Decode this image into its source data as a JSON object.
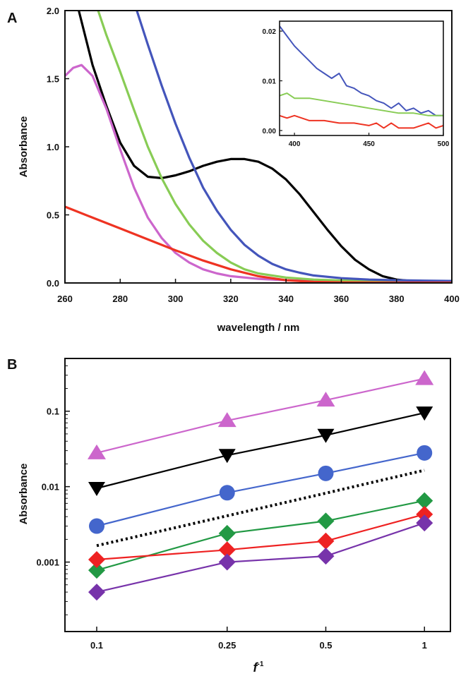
{
  "chart_data": [
    {
      "panel": "A",
      "type": "line",
      "xlabel": "wavelength / nm",
      "ylabel": "Absorbance",
      "xlim": [
        260,
        400
      ],
      "ylim": [
        0,
        2.0
      ],
      "xticks": [
        260,
        280,
        300,
        320,
        340,
        360,
        380,
        400
      ],
      "yticks": [
        0.0,
        0.5,
        1.0,
        1.5,
        2.0
      ],
      "ytick_labels": [
        "0.0",
        "0.5",
        "1.0",
        "1.5",
        "2.0"
      ],
      "series": [
        {
          "color": "#000000",
          "points": [
            [
              260,
              2.3
            ],
            [
              265,
              2.0
            ],
            [
              270,
              1.6
            ],
            [
              275,
              1.3
            ],
            [
              280,
              1.03
            ],
            [
              285,
              0.86
            ],
            [
              290,
              0.78
            ],
            [
              295,
              0.77
            ],
            [
              300,
              0.79
            ],
            [
              305,
              0.82
            ],
            [
              310,
              0.86
            ],
            [
              315,
              0.89
            ],
            [
              320,
              0.91
            ],
            [
              325,
              0.91
            ],
            [
              330,
              0.89
            ],
            [
              335,
              0.84
            ],
            [
              340,
              0.76
            ],
            [
              345,
              0.65
            ],
            [
              350,
              0.52
            ],
            [
              355,
              0.39
            ],
            [
              360,
              0.27
            ],
            [
              365,
              0.17
            ],
            [
              370,
              0.1
            ],
            [
              375,
              0.05
            ],
            [
              380,
              0.025
            ],
            [
              385,
              0.015
            ],
            [
              390,
              0.01
            ],
            [
              400,
              0.01
            ]
          ]
        },
        {
          "color": "#cc66cc",
          "points": [
            [
              260,
              1.52
            ],
            [
              263,
              1.58
            ],
            [
              266,
              1.6
            ],
            [
              270,
              1.52
            ],
            [
              275,
              1.28
            ],
            [
              280,
              0.98
            ],
            [
              285,
              0.7
            ],
            [
              290,
              0.48
            ],
            [
              295,
              0.33
            ],
            [
              300,
              0.22
            ],
            [
              305,
              0.15
            ],
            [
              310,
              0.1
            ],
            [
              315,
              0.07
            ],
            [
              320,
              0.05
            ],
            [
              330,
              0.03
            ],
            [
              340,
              0.02
            ],
            [
              350,
              0.015
            ],
            [
              360,
              0.012
            ],
            [
              380,
              0.01
            ],
            [
              400,
              0.01
            ]
          ]
        },
        {
          "color": "#88cc55",
          "points": [
            [
              272,
              2.0
            ],
            [
              275,
              1.82
            ],
            [
              280,
              1.55
            ],
            [
              285,
              1.27
            ],
            [
              290,
              1.0
            ],
            [
              295,
              0.77
            ],
            [
              300,
              0.58
            ],
            [
              305,
              0.43
            ],
            [
              310,
              0.31
            ],
            [
              315,
              0.22
            ],
            [
              320,
              0.15
            ],
            [
              325,
              0.1
            ],
            [
              330,
              0.07
            ],
            [
              340,
              0.04
            ],
            [
              350,
              0.025
            ],
            [
              360,
              0.018
            ],
            [
              380,
              0.012
            ],
            [
              400,
              0.01
            ]
          ]
        },
        {
          "color": "#4455bb",
          "points": [
            [
              286,
              2.0
            ],
            [
              290,
              1.75
            ],
            [
              295,
              1.45
            ],
            [
              300,
              1.17
            ],
            [
              305,
              0.92
            ],
            [
              310,
              0.7
            ],
            [
              315,
              0.53
            ],
            [
              320,
              0.39
            ],
            [
              325,
              0.28
            ],
            [
              330,
              0.2
            ],
            [
              335,
              0.14
            ],
            [
              340,
              0.1
            ],
            [
              345,
              0.075
            ],
            [
              350,
              0.055
            ],
            [
              360,
              0.035
            ],
            [
              370,
              0.025
            ],
            [
              380,
              0.02
            ],
            [
              390,
              0.017
            ],
            [
              400,
              0.015
            ]
          ]
        },
        {
          "color": "#ee3322",
          "points": [
            [
              260,
              0.56
            ],
            [
              270,
              0.48
            ],
            [
              280,
              0.4
            ],
            [
              290,
              0.32
            ],
            [
              300,
              0.24
            ],
            [
              310,
              0.165
            ],
            [
              320,
              0.1
            ],
            [
              330,
              0.05
            ],
            [
              340,
              0.02
            ],
            [
              350,
              0.008
            ],
            [
              360,
              0.004
            ],
            [
              380,
              0.002
            ],
            [
              400,
              0.002
            ]
          ]
        }
      ],
      "inset": {
        "type": "line",
        "xlim": [
          390,
          500
        ],
        "ylim": [
          -0.001,
          0.022
        ],
        "xticks": [
          400,
          450,
          500
        ],
        "yticks": [
          0.0,
          0.01,
          0.02
        ],
        "ytick_labels": [
          "0.00",
          "0.01",
          "0.02"
        ],
        "series": [
          {
            "color": "#4455bb",
            "points": [
              [
                390,
                0.021
              ],
              [
                395,
                0.019
              ],
              [
                400,
                0.017
              ],
              [
                405,
                0.0155
              ],
              [
                410,
                0.014
              ],
              [
                415,
                0.0125
              ],
              [
                420,
                0.0115
              ],
              [
                425,
                0.0105
              ],
              [
                430,
                0.0115
              ],
              [
                435,
                0.009
              ],
              [
                440,
                0.0085
              ],
              [
                445,
                0.0075
              ],
              [
                450,
                0.007
              ],
              [
                455,
                0.006
              ],
              [
                460,
                0.0055
              ],
              [
                465,
                0.0045
              ],
              [
                470,
                0.0055
              ],
              [
                475,
                0.004
              ],
              [
                480,
                0.0045
              ],
              [
                485,
                0.0035
              ],
              [
                490,
                0.004
              ],
              [
                495,
                0.003
              ],
              [
                500,
                0.003
              ]
            ]
          },
          {
            "color": "#88cc55",
            "points": [
              [
                390,
                0.007
              ],
              [
                395,
                0.0075
              ],
              [
                400,
                0.0065
              ],
              [
                410,
                0.0065
              ],
              [
                420,
                0.006
              ],
              [
                430,
                0.0055
              ],
              [
                440,
                0.005
              ],
              [
                450,
                0.0045
              ],
              [
                460,
                0.004
              ],
              [
                470,
                0.0035
              ],
              [
                480,
                0.0035
              ],
              [
                490,
                0.003
              ],
              [
                500,
                0.003
              ]
            ]
          },
          {
            "color": "#ee3322",
            "points": [
              [
                390,
                0.003
              ],
              [
                395,
                0.0025
              ],
              [
                400,
                0.003
              ],
              [
                410,
                0.002
              ],
              [
                420,
                0.002
              ],
              [
                430,
                0.0015
              ],
              [
                440,
                0.0015
              ],
              [
                450,
                0.001
              ],
              [
                455,
                0.0015
              ],
              [
                460,
                0.0005
              ],
              [
                465,
                0.0015
              ],
              [
                470,
                0.0005
              ],
              [
                480,
                0.0005
              ],
              [
                490,
                0.0015
              ],
              [
                495,
                0.0005
              ],
              [
                500,
                0.001
              ]
            ]
          }
        ]
      }
    },
    {
      "panel": "B",
      "type": "line",
      "xlabel": "f",
      "xlabel_sup": "-1",
      "ylabel": "Absorbance",
      "xscale": "log",
      "yscale": "log",
      "xlim": [
        0.08,
        1.2
      ],
      "ylim": [
        0.00012,
        0.5
      ],
      "xticks": [
        0.1,
        0.25,
        0.5,
        1
      ],
      "xtick_labels": [
        "0.1",
        "0.25",
        "0.5",
        "1"
      ],
      "yticks": [
        0.001,
        0.01,
        0.1
      ],
      "ytick_labels": [
        "0.001",
        "0.01",
        "0.1"
      ],
      "x": [
        0.1,
        0.25,
        0.5,
        1
      ],
      "series": [
        {
          "color": "#cc66cc",
          "marker": "triangle-up",
          "values": [
            0.028,
            0.075,
            0.14,
            0.27
          ]
        },
        {
          "color": "#000000",
          "marker": "triangle-down",
          "values": [
            0.0095,
            0.026,
            0.048,
            0.095
          ]
        },
        {
          "color": "#4466cc",
          "marker": "circle",
          "values": [
            0.003,
            0.0083,
            0.015,
            0.028
          ]
        },
        {
          "color": "#000000",
          "marker": "none",
          "dotted": true,
          "values": [
            0.00165,
            0.0041,
            0.0082,
            0.0165
          ]
        },
        {
          "color": "#229944",
          "marker": "diamond",
          "values": [
            0.00078,
            0.0024,
            0.0035,
            0.0065
          ]
        },
        {
          "color": "#ee2222",
          "marker": "diamond",
          "values": [
            0.00108,
            0.00145,
            0.0019,
            0.0043
          ]
        },
        {
          "color": "#7733aa",
          "marker": "diamond",
          "values": [
            0.0004,
            0.001,
            0.0012,
            0.0033
          ]
        }
      ]
    }
  ]
}
